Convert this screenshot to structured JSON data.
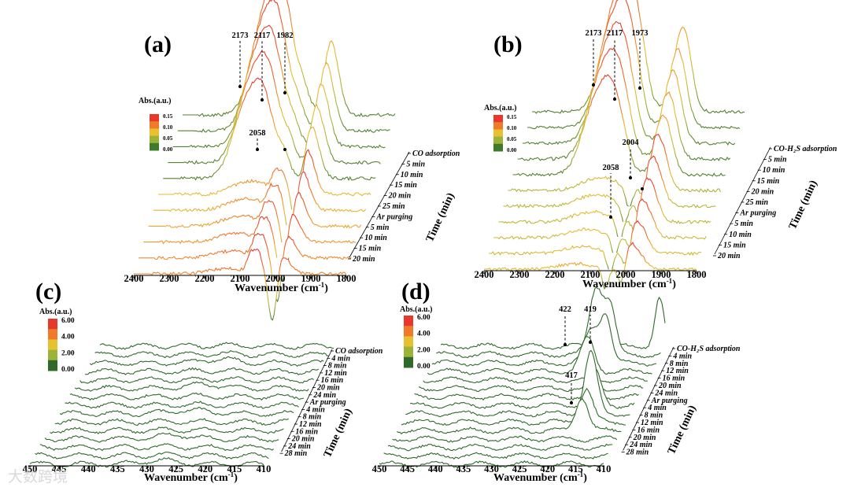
{
  "watermark": "大数跨境",
  "chart_data": [
    {
      "type": "area",
      "panel": "(a)",
      "xlabel": "Wavenumber (cm⁻¹)",
      "ylabel": "Time (min)",
      "xlim": [
        2400,
        1800
      ],
      "xticks": [
        2400,
        2300,
        2200,
        2100,
        2000,
        1900,
        1800
      ],
      "legend_title": "Abs.(a.u.)",
      "legend_ticks": [
        "0.15",
        "0.10",
        "0.05",
        "0.00"
      ],
      "legend_colors": [
        "#e8382b",
        "#f07a28",
        "#e7c12f",
        "#9cb33a",
        "#3f7a2c"
      ],
      "time_labels": [
        "CO adsorption",
        "5 min",
        "10 min",
        "15 min",
        "20 min",
        "25 min",
        "Ar purging",
        "5 min",
        "10 min",
        "15 min",
        "20 min"
      ],
      "peaks_top": [
        {
          "label": "2173",
          "wavenumber": 2173
        },
        {
          "label": "2117",
          "wavenumber": 2117
        },
        {
          "label": "1982",
          "wavenumber": 1982
        }
      ],
      "peaks_mid": [
        {
          "label": "2058",
          "wavenumber": 2058
        }
      ],
      "series_note": "11 spectra, absorbance 0 to 0.15; CO bands near 2173/2117 cm-1 decay after Ar purging",
      "baseline_start": 2355
    },
    {
      "type": "area",
      "panel": "(b)",
      "xlabel": "Wavenumber (cm⁻¹)",
      "ylabel": "Time (min)",
      "xlim": [
        2400,
        1800
      ],
      "xticks": [
        2400,
        2300,
        2200,
        2100,
        2000,
        1900,
        1800
      ],
      "legend_title": "Abs.(a.u.)",
      "legend_ticks": [
        "0.15",
        "0.10",
        "0.05",
        "0.00"
      ],
      "legend_colors": [
        "#e8382b",
        "#f07a28",
        "#e7c12f",
        "#9cb33a",
        "#3f7a2c"
      ],
      "time_labels": [
        "CO-H₂S adsorption",
        "5 min",
        "10 min",
        "15 min",
        "20 min",
        "25 min",
        "Ar purging",
        "5 min",
        "10 min",
        "15 min",
        "20 min"
      ],
      "peaks_top": [
        {
          "label": "2173",
          "wavenumber": 2173
        },
        {
          "label": "2117",
          "wavenumber": 2117
        },
        {
          "label": "1973",
          "wavenumber": 1973
        }
      ],
      "peaks_mid": [
        {
          "label": "2058",
          "wavenumber": 2058
        },
        {
          "label": "2004",
          "wavenumber": 2004
        }
      ],
      "series_note": "11 spectra, absorbance 0 to 0.15",
      "baseline_start": 2390
    },
    {
      "type": "area",
      "panel": "(c)",
      "xlabel": "Wavenumber (cm⁻¹)",
      "ylabel": "Time (min)",
      "xlim": [
        450,
        410
      ],
      "xticks": [
        450,
        445,
        440,
        435,
        430,
        425,
        420,
        415,
        410
      ],
      "legend_title": "Abs.(a.u.)",
      "legend_ticks": [
        "6.00",
        "4.00",
        "2.00",
        "0.00"
      ],
      "legend_colors": [
        "#e8382b",
        "#f07a28",
        "#e7c12f",
        "#9cb33a",
        "#2f6a2a"
      ],
      "time_labels": [
        "CO adsorption",
        "4 min",
        "8 min",
        "12 min",
        "16 min",
        "20 min",
        "24 min",
        "Ar purging",
        "4 min",
        "8 min",
        "12 min",
        "16 min",
        "20 min",
        "24 min",
        "28 min"
      ],
      "peaks_top": [],
      "peaks_mid": [],
      "series_note": "Many low-absorbance spectra, no distinct peaks"
    },
    {
      "type": "area",
      "panel": "(d)",
      "xlabel": "Wavenumber (cm⁻¹)",
      "ylabel": "Time (min)",
      "xlim": [
        450,
        410
      ],
      "xticks": [
        450,
        445,
        440,
        435,
        430,
        425,
        420,
        415,
        410
      ],
      "legend_title": "Abs.(a.u.)",
      "legend_ticks": [
        "6.00",
        "4.00",
        "2.00",
        "0.00"
      ],
      "legend_colors": [
        "#e8382b",
        "#f07a28",
        "#e7c12f",
        "#9cb33a",
        "#2f6a2a"
      ],
      "time_labels": [
        "CO-H₂S adsorption",
        "4 min",
        "8 min",
        "12 min",
        "16 min",
        "20 min",
        "24 min",
        "Ar purging",
        "4 min",
        "8 min",
        "12 min",
        "16 min",
        "20 min",
        "24 min",
        "28 min"
      ],
      "peaks_top": [
        {
          "label": "422",
          "wavenumber": 422
        },
        {
          "label": "419",
          "wavenumber": 419
        }
      ],
      "peaks_mid": [
        {
          "label": "417",
          "wavenumber": 417
        }
      ],
      "series_note": "Strong bands at 422/419 and 417 cm-1 during CO-H2S adsorption"
    }
  ]
}
